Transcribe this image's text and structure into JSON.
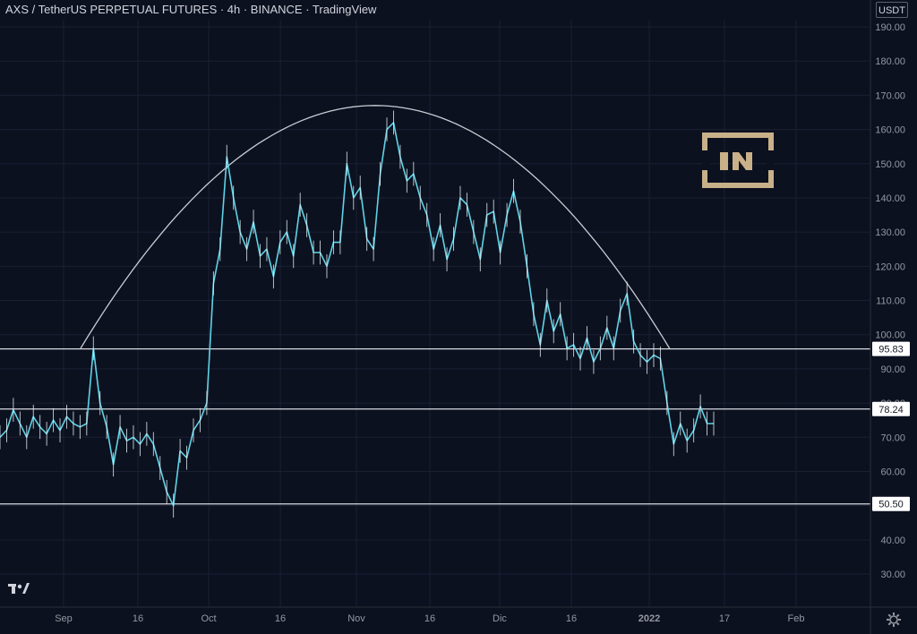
{
  "header": {
    "title": "AXS / TetherUS PERPETUAL FUTURES · 4h · BINANCE · TradingView",
    "currency": "USDT"
  },
  "icons": {
    "tradingview_logo": "tradingview-logo-icon",
    "settings": "gear-icon",
    "watermark": "beincrypto-logo"
  },
  "colors": {
    "background": "#0c1120",
    "series": "#5fd3e6",
    "grid": "#1a2033",
    "level_line": "#d7dae0",
    "arc": "#c9ccd3",
    "watermark": "#c8b089"
  },
  "chart_data": {
    "type": "line",
    "ylim": [
      20,
      195
    ],
    "y_ticks": [
      "190.00",
      "180.00",
      "170.00",
      "160.00",
      "150.00",
      "140.00",
      "130.00",
      "120.00",
      "110.00",
      "100.00",
      "90.00",
      "80.00",
      "70.00",
      "60.00",
      "50.00",
      "40.00",
      "30.00"
    ],
    "x_ticks": [
      "Sep",
      "16",
      "Oct",
      "16",
      "Nov",
      "16",
      "Dic",
      "16",
      "2022",
      "17",
      "Feb"
    ],
    "series": [
      {
        "values": [
          70,
          72,
          78,
          74,
          70,
          76,
          73,
          71,
          75,
          72,
          76,
          74,
          73,
          74,
          96,
          80,
          73,
          62,
          73,
          69,
          70,
          68,
          71,
          68,
          61,
          54,
          50,
          66,
          64,
          72,
          75,
          80,
          115,
          125,
          152,
          140,
          130,
          125,
          133,
          123,
          125,
          117,
          127,
          130,
          123,
          138,
          132,
          124,
          124,
          120,
          127,
          127,
          150,
          140,
          143,
          128,
          125,
          147,
          160,
          162,
          152,
          145,
          147,
          140,
          135,
          125,
          132,
          122,
          128,
          140,
          138,
          130,
          122,
          135,
          136,
          124,
          135,
          142,
          133,
          120,
          106,
          97,
          110,
          101,
          106,
          96,
          97,
          93,
          99,
          92,
          96,
          102,
          96,
          107,
          112,
          98,
          94,
          92,
          94,
          93,
          80,
          68,
          74,
          69,
          72,
          79,
          74,
          74
        ]
      }
    ],
    "levels": [
      {
        "label": "95.83",
        "value": 95.83
      },
      {
        "label": "78.24",
        "value": 78.24
      },
      {
        "label": "50.50",
        "value": 50.5
      }
    ],
    "arc": {
      "start_value": 96,
      "peak_value": 167,
      "end_value": 95.83
    },
    "grid": true
  }
}
